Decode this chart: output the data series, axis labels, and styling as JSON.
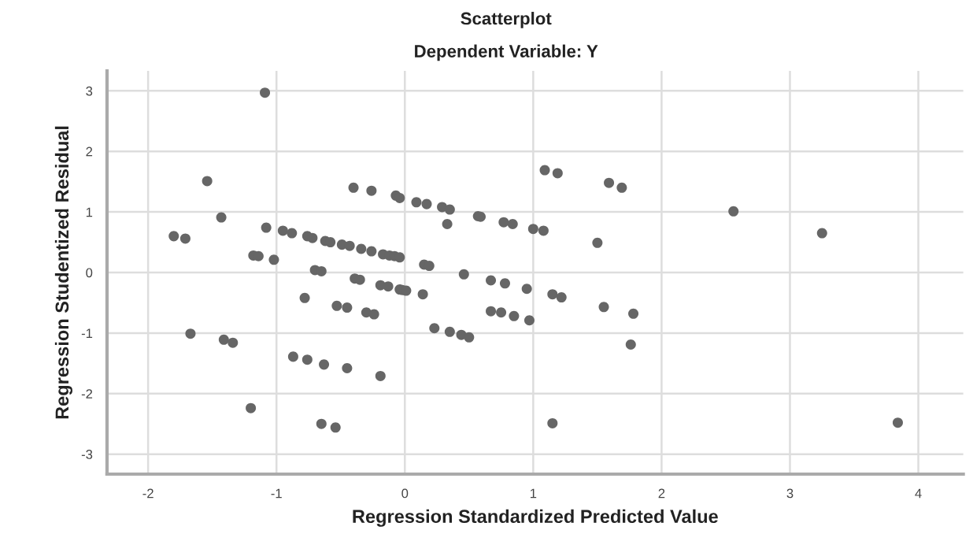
{
  "chart_data": {
    "type": "scatter",
    "title": "Scatterplot",
    "subtitle": "Dependent Variable: Y",
    "xlabel": "Regression Standardized Predicted Value",
    "ylabel": "Regression Studentized Residual",
    "xlim": [
      -2.32,
      4.35
    ],
    "ylim": [
      -3.33,
      3.33
    ],
    "xticks": [
      -2,
      -1,
      0,
      1,
      2,
      3,
      4
    ],
    "yticks": [
      -3,
      -2,
      -1,
      0,
      1,
      2,
      3
    ],
    "grid": true,
    "marker": "circle",
    "series": [
      {
        "color": "#666666",
        "x": [
          -1.09,
          -1.54,
          -1.43,
          -1.8,
          -1.71,
          -1.08,
          -1.18,
          -1.14,
          -1.02,
          -0.95,
          -0.88,
          -0.76,
          -0.72,
          -0.62,
          -0.58,
          -0.49,
          -0.43,
          -0.34,
          -0.26,
          -0.17,
          -0.12,
          -0.08,
          -0.04,
          -0.4,
          -0.26,
          -0.07,
          -0.04,
          -0.7,
          -0.65,
          -0.39,
          -0.35,
          -0.19,
          -0.13,
          -0.02,
          -0.78,
          -0.53,
          -0.45,
          -0.3,
          -0.24,
          -1.67,
          -1.41,
          -1.34,
          -0.87,
          -0.76,
          -0.63,
          -0.45,
          -0.19,
          -1.2,
          -0.65,
          -0.54,
          0.09,
          0.17,
          0.29,
          0.35,
          0.33,
          0.57,
          0.59,
          0.77,
          0.84,
          1.0,
          1.08,
          1.09,
          1.19,
          1.59,
          1.69,
          1.5,
          0.15,
          0.19,
          0.46,
          0.67,
          0.78,
          0.95,
          1.15,
          1.22,
          1.55,
          1.78,
          1.76,
          -0.04,
          0.01,
          0.14,
          0.67,
          0.75,
          0.85,
          0.97,
          0.23,
          0.35,
          0.44,
          0.5,
          1.15,
          2.56,
          3.25,
          3.84
        ],
        "values": [
          2.97,
          1.51,
          0.91,
          0.6,
          0.56,
          0.74,
          0.28,
          0.27,
          0.21,
          0.69,
          0.65,
          0.6,
          0.57,
          0.52,
          0.5,
          0.46,
          0.44,
          0.39,
          0.35,
          0.3,
          0.28,
          0.27,
          0.25,
          1.4,
          1.35,
          1.27,
          1.23,
          0.04,
          0.02,
          -0.1,
          -0.12,
          -0.21,
          -0.23,
          -0.29,
          -0.42,
          -0.55,
          -0.58,
          -0.66,
          -0.69,
          -1.01,
          -1.11,
          -1.16,
          -1.39,
          -1.44,
          -1.52,
          -1.58,
          -1.71,
          -2.24,
          -2.5,
          -2.56,
          1.16,
          1.13,
          1.08,
          1.04,
          0.8,
          0.93,
          0.92,
          0.83,
          0.8,
          0.72,
          0.69,
          1.69,
          1.64,
          1.48,
          1.4,
          0.49,
          0.13,
          0.11,
          -0.03,
          -0.13,
          -0.18,
          -0.27,
          -0.36,
          -0.41,
          -0.57,
          -0.68,
          -1.19,
          -0.28,
          -0.3,
          -0.36,
          -0.64,
          -0.66,
          -0.72,
          -0.79,
          -0.92,
          -0.98,
          -1.03,
          -1.07,
          -2.49,
          1.01,
          0.65,
          -2.48
        ]
      }
    ]
  }
}
